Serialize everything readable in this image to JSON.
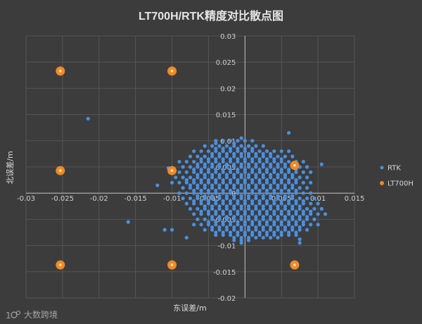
{
  "chart_data": {
    "type": "scatter",
    "title": "LT700H/RTK精度对比散点图",
    "xlabel": "东误差/m",
    "ylabel": "北误差/m",
    "xlim": [
      -0.03,
      0.015
    ],
    "ylim": [
      -0.02,
      0.03
    ],
    "xticks": [
      "-0.03",
      "-0.025",
      "-0.02",
      "-0.015",
      "-0.01",
      "-0.005",
      "0",
      "0.005",
      "0.01",
      "0.015"
    ],
    "yticks": [
      "-0.02",
      "-0.015",
      "-0.01",
      "-0.005",
      "0",
      "0.005",
      "0.01",
      "0.015",
      "0.02",
      "0.025",
      "0.03"
    ],
    "legend": "right",
    "series": [
      {
        "name": "RTK",
        "color": "#4a90e2",
        "points": [
          [
            -0.0215,
            0.0142
          ],
          [
            -0.016,
            -0.0055
          ],
          [
            -0.0105,
            0.0048
          ],
          [
            -0.012,
            0.0015
          ],
          [
            -0.011,
            -0.007
          ],
          [
            -0.01,
            -0.007
          ],
          [
            0.0105,
            0.0055
          ],
          [
            -0.004,
            0.0095
          ],
          [
            -0.0005,
            0.0105
          ],
          [
            0.006,
            0.0115
          ],
          [
            -0.0005,
            -0.0095
          ],
          [
            0.0075,
            -0.0095
          ],
          [
            0.0075,
            -0.0088
          ],
          [
            -0.008,
            -0.0085
          ]
        ],
        "grid": {
          "x_step": 0.001,
          "y_step": 0.0005,
          "rows": [
            [
              0.01,
              -0.004,
              0.001
            ],
            [
              0.009,
              -0.006,
              0.003
            ],
            [
              0.008,
              -0.007,
              0.006
            ],
            [
              0.007,
              -0.008,
              0.007
            ],
            [
              0.006,
              -0.009,
              0.008
            ],
            [
              0.005,
              -0.009,
              0.009
            ],
            [
              0.004,
              -0.009,
              0.009
            ],
            [
              0.003,
              -0.01,
              0.009
            ],
            [
              0.002,
              -0.01,
              0.009
            ],
            [
              0.001,
              -0.009,
              0.009
            ],
            [
              0.0,
              -0.009,
              0.009
            ],
            [
              -0.001,
              -0.009,
              0.01
            ],
            [
              -0.002,
              -0.008,
              0.01
            ],
            [
              -0.003,
              -0.008,
              0.011
            ],
            [
              -0.004,
              -0.007,
              0.011
            ],
            [
              -0.005,
              -0.007,
              0.01
            ],
            [
              -0.006,
              -0.007,
              0.01
            ],
            [
              -0.007,
              -0.006,
              0.009
            ],
            [
              -0.008,
              -0.004,
              0.007
            ],
            [
              -0.009,
              -0.002,
              0.001
            ]
          ]
        }
      },
      {
        "name": "LT700H",
        "color": "#f08a24",
        "points": [
          [
            -0.0253,
            0.0233
          ],
          [
            -0.01,
            0.0233
          ],
          [
            -0.0253,
            0.0043
          ],
          [
            -0.01,
            0.0043
          ],
          [
            0.0068,
            0.0053
          ],
          [
            -0.0253,
            -0.0137
          ],
          [
            -0.01,
            -0.0137
          ],
          [
            0.0068,
            -0.0137
          ]
        ]
      }
    ]
  },
  "watermark": {
    "text": "大数跨境"
  }
}
